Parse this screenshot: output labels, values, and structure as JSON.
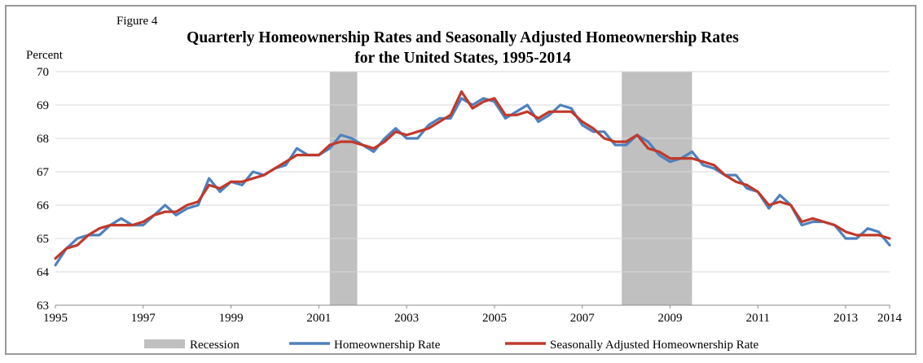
{
  "chart_data": {
    "type": "line",
    "figure_label": "Figure 4",
    "title_line1": "Quarterly Homeownership Rates and Seasonally Adjusted Homeownership Rates",
    "title_line2": "for the United States, 1995-2014",
    "ylabel": "Percent",
    "ylim": [
      63,
      70
    ],
    "y_ticks": [
      "63",
      "64",
      "65",
      "66",
      "67",
      "68",
      "69",
      "70"
    ],
    "x_ticks": [
      "1995",
      "1997",
      "1999",
      "2001",
      "2003",
      "2005",
      "2007",
      "2009",
      "2011",
      "2013",
      "2014"
    ],
    "x_tick_values": [
      1995,
      1997,
      1999,
      2001,
      2003,
      2005,
      2007,
      2009,
      2011,
      2013,
      2014
    ],
    "x_start": 1995.0,
    "quarter_step": 0.25,
    "recessions": [
      {
        "start": 2001.25,
        "end": 2001.875
      },
      {
        "start": 2007.9,
        "end": 2009.5
      }
    ],
    "colors": {
      "recession": "#c0c0c0",
      "homeownership": "#4f81bd",
      "seasonally_adjusted": "#c0392b",
      "grid": "#d9d9d9",
      "frame": "#9a9a9a"
    },
    "series": [
      {
        "name": "Homeownership Rate",
        "values": [
          64.2,
          64.7,
          65.0,
          65.1,
          65.1,
          65.4,
          65.6,
          65.4,
          65.4,
          65.7,
          66.0,
          65.7,
          65.9,
          66.0,
          66.8,
          66.4,
          66.7,
          66.6,
          67.0,
          66.9,
          67.1,
          67.2,
          67.7,
          67.5,
          67.5,
          67.7,
          68.1,
          68.0,
          67.8,
          67.6,
          68.0,
          68.3,
          68.0,
          68.0,
          68.4,
          68.6,
          68.6,
          69.2,
          69.0,
          69.2,
          69.1,
          68.6,
          68.8,
          69.0,
          68.5,
          68.7,
          69.0,
          68.9,
          68.4,
          68.2,
          68.2,
          67.8,
          67.8,
          68.1,
          67.9,
          67.5,
          67.3,
          67.4,
          67.6,
          67.2,
          67.1,
          66.9,
          66.9,
          66.5,
          66.4,
          65.9,
          66.3,
          66.0,
          65.4,
          65.5,
          65.5,
          65.4,
          65.0,
          65.0,
          65.3,
          65.2,
          64.8
        ]
      },
      {
        "name": "Seasonally Adjusted Homeownership Rate",
        "values": [
          64.4,
          64.7,
          64.8,
          65.1,
          65.3,
          65.4,
          65.4,
          65.4,
          65.5,
          65.7,
          65.8,
          65.8,
          66.0,
          66.1,
          66.6,
          66.5,
          66.7,
          66.7,
          66.8,
          66.9,
          67.1,
          67.3,
          67.5,
          67.5,
          67.5,
          67.8,
          67.9,
          67.9,
          67.8,
          67.7,
          67.9,
          68.2,
          68.1,
          68.2,
          68.3,
          68.5,
          68.7,
          69.4,
          68.9,
          69.1,
          69.2,
          68.7,
          68.7,
          68.8,
          68.6,
          68.8,
          68.8,
          68.8,
          68.5,
          68.3,
          68.0,
          67.9,
          67.9,
          68.1,
          67.7,
          67.6,
          67.4,
          67.4,
          67.4,
          67.3,
          67.2,
          66.9,
          66.7,
          66.6,
          66.4,
          66.0,
          66.1,
          66.0,
          65.5,
          65.6,
          65.5,
          65.4,
          65.2,
          65.1,
          65.1,
          65.1,
          65.0
        ]
      }
    ],
    "legend": [
      {
        "key": "recession",
        "label": "Recession"
      },
      {
        "key": "homeownership",
        "label": "Homeownership Rate"
      },
      {
        "key": "seasonally_adjusted",
        "label": "Seasonally Adjusted Homeownership Rate"
      }
    ]
  }
}
